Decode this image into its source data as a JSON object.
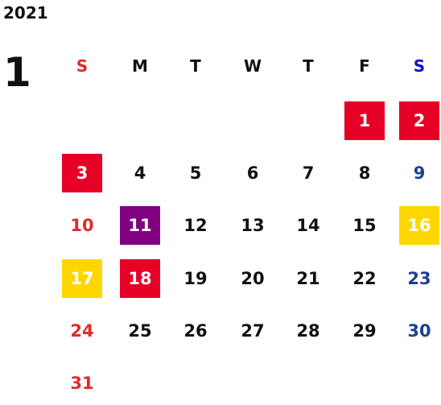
{
  "year": "2021",
  "month": "1",
  "weekdays": [
    "S",
    "M",
    "T",
    "W",
    "T",
    "F",
    "S"
  ],
  "weeks": [
    [
      null,
      null,
      null,
      null,
      null,
      1,
      2
    ],
    [
      3,
      4,
      5,
      6,
      7,
      8,
      9
    ],
    [
      10,
      11,
      12,
      13,
      14,
      15,
      16
    ],
    [
      17,
      18,
      19,
      20,
      21,
      22,
      23
    ],
    [
      24,
      25,
      26,
      27,
      28,
      29,
      30
    ],
    [
      31,
      null,
      null,
      null,
      null,
      null,
      null
    ]
  ],
  "sunday_color": "#e02a2a",
  "saturday_color": "#1f3f8f",
  "saturday_header_color": "#1010cc",
  "marked": [
    {
      "day": 1,
      "color": "#e60026"
    },
    {
      "day": 2,
      "color": "#e60026"
    },
    {
      "day": 3,
      "color": "#e60026"
    },
    {
      "day": 11,
      "color": "#800080"
    },
    {
      "day": 16,
      "color": "#ffd700"
    },
    {
      "day": 17,
      "color": "#ffd700"
    },
    {
      "day": 18,
      "color": "#e60026"
    }
  ]
}
